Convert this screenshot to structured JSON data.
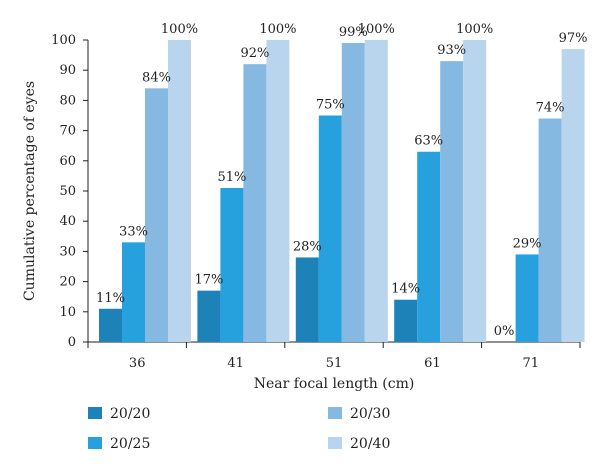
{
  "chart_data": {
    "type": "bar",
    "title": "",
    "xlabel": "Near focal length (cm)",
    "ylabel": "Cumulative percentage of eyes",
    "ylim": [
      0,
      100
    ],
    "yticks": [
      0,
      10,
      20,
      30,
      40,
      50,
      60,
      70,
      80,
      90,
      100
    ],
    "categories": [
      "36",
      "41",
      "51",
      "61",
      "71"
    ],
    "series": [
      {
        "name": "20/20",
        "color": "#1c82b8",
        "values": [
          11,
          17,
          28,
          14,
          0
        ],
        "labels": [
          "11%",
          "17%",
          "28%",
          "14%",
          "0%"
        ]
      },
      {
        "name": "20/25",
        "color": "#27a1dd",
        "values": [
          33,
          51,
          75,
          63,
          29
        ],
        "labels": [
          "33%",
          "51%",
          "75%",
          "63%",
          "29%"
        ]
      },
      {
        "name": "20/30",
        "color": "#86b9e2",
        "values": [
          84,
          92,
          99,
          93,
          74
        ],
        "labels": [
          "84%",
          "92%",
          "99%",
          "93%",
          "74%"
        ]
      },
      {
        "name": "20/40",
        "color": "#b9d5ee",
        "values": [
          100,
          100,
          100,
          100,
          97
        ],
        "labels": [
          "100%",
          "100%",
          "100%",
          "100%",
          "97%"
        ]
      }
    ],
    "grid": false,
    "legend_position": "bottom"
  }
}
